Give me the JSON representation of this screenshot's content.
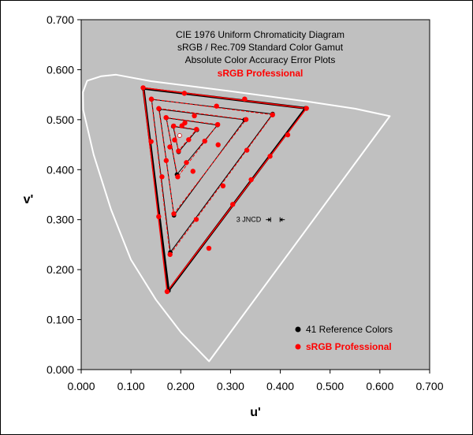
{
  "chart_data": {
    "type": "scatter",
    "title_lines": [
      "CIE 1976 Uniform Chromaticity Diagram",
      "sRGB / Rec.709 Standard Color Gamut",
      "Absolute Color Accuracy Error Plots"
    ],
    "subtitle": "sRGB Professional",
    "xlabel": "u'",
    "ylabel": "v'",
    "xlim": [
      0,
      0.7
    ],
    "ylim": [
      0,
      0.7
    ],
    "x_ticks": [
      "0.000",
      "0.100",
      "0.200",
      "0.300",
      "0.400",
      "0.500",
      "0.600",
      "0.700"
    ],
    "y_ticks": [
      "0.000",
      "0.100",
      "0.200",
      "0.300",
      "0.400",
      "0.500",
      "0.600",
      "0.700"
    ],
    "grid": false,
    "plot_background": "#c0c0c0",
    "legend_position": "bottom-right",
    "annotation": "3 JNCD",
    "annotation_point": [
      0.39,
      0.3
    ],
    "white_point": [
      0.1978,
      0.4683
    ],
    "spectral_locus": [
      [
        0.2568,
        0.0165
      ],
      [
        0.2,
        0.075
      ],
      [
        0.15,
        0.14
      ],
      [
        0.1,
        0.22
      ],
      [
        0.06,
        0.32
      ],
      [
        0.025,
        0.43
      ],
      [
        0.004,
        0.52
      ],
      [
        0.0035,
        0.555
      ],
      [
        0.012,
        0.578
      ],
      [
        0.04,
        0.587
      ],
      [
        0.07,
        0.59
      ],
      [
        0.14,
        0.577
      ],
      [
        0.3,
        0.557
      ],
      [
        0.45,
        0.537
      ],
      [
        0.55,
        0.522
      ],
      [
        0.62,
        0.507
      ]
    ],
    "series": [
      {
        "name": "41 Reference Colors",
        "color": "#000000",
        "triangles": [
          [
            [
              0.4507,
              0.5229
            ],
            [
              0.125,
              0.5625
            ],
            [
              0.1754,
              0.1579
            ]
          ],
          [
            [
              0.3846,
              0.5115
            ],
            [
              0.1415,
              0.5406
            ],
            [
              0.1791,
              0.2347
            ]
          ],
          [
            [
              0.3283,
              0.4998
            ],
            [
              0.1567,
              0.5211
            ],
            [
              0.1864,
              0.3085
            ]
          ],
          [
            [
              0.2739,
              0.4892
            ],
            [
              0.1711,
              0.5035
            ],
            [
              0.1923,
              0.3903
            ]
          ],
          [
            [
              0.2326,
              0.4795
            ],
            [
              0.1848,
              0.4865
            ],
            [
              0.1957,
              0.4354
            ]
          ]
        ],
        "points": [
          [
            0.4507,
            0.5229
          ],
          [
            0.3284,
            0.5413
          ],
          [
            0.2073,
            0.5528
          ],
          [
            0.125,
            0.5625
          ],
          [
            0.1404,
            0.4562
          ],
          [
            0.1557,
            0.3061
          ],
          [
            0.1754,
            0.1579
          ],
          [
            0.2565,
            0.2427
          ],
          [
            0.3044,
            0.3305
          ],
          [
            0.3415,
            0.3799
          ],
          [
            0.3794,
            0.4268
          ],
          [
            0.4149,
            0.4697
          ],
          [
            0.3846,
            0.5115
          ],
          [
            0.2719,
            0.5271
          ],
          [
            0.1415,
            0.5406
          ],
          [
            0.1622,
            0.3857
          ],
          [
            0.1791,
            0.2347
          ],
          [
            0.2312,
            0.3005
          ],
          [
            0.2849,
            0.3675
          ],
          [
            0.3328,
            0.4389
          ],
          [
            0.3283,
            0.4998
          ],
          [
            0.2274,
            0.5077
          ],
          [
            0.1567,
            0.5211
          ],
          [
            0.1708,
            0.4182
          ],
          [
            0.1864,
            0.3085
          ],
          [
            0.2245,
            0.3967
          ],
          [
            0.2751,
            0.4497
          ],
          [
            0.2739,
            0.4892
          ],
          [
            0.2083,
            0.4934
          ],
          [
            0.1711,
            0.5035
          ],
          [
            0.1781,
            0.4454
          ],
          [
            0.1923,
            0.3903
          ],
          [
            0.2114,
            0.4142
          ],
          [
            0.2482,
            0.4571
          ],
          [
            0.2326,
            0.4795
          ],
          [
            0.2023,
            0.4878
          ],
          [
            0.1848,
            0.4865
          ],
          [
            0.1957,
            0.4354
          ],
          [
            0.2159,
            0.4599
          ],
          [
            0.1978,
            0.4683
          ],
          [
            0.1876,
            0.4594
          ]
        ]
      },
      {
        "name": "sRGB Professional",
        "color": "#ff0000",
        "triangles": [
          [
            [
              0.4525,
              0.5226
            ],
            [
              0.1244,
              0.5638
            ],
            [
              0.1726,
              0.1561
            ]
          ],
          [
            [
              0.3844,
              0.5097
            ],
            [
              0.1409,
              0.5412
            ],
            [
              0.1785,
              0.2303
            ]
          ],
          [
            [
              0.3311,
              0.5003
            ],
            [
              0.1558,
              0.5223
            ],
            [
              0.1861,
              0.3117
            ]
          ],
          [
            [
              0.2742,
              0.4902
            ],
            [
              0.1705,
              0.5042
            ],
            [
              0.1939,
              0.3857
            ]
          ],
          [
            [
              0.2316,
              0.4806
            ],
            [
              0.1856,
              0.4873
            ],
            [
              0.1955,
              0.4373
            ]
          ]
        ],
        "points": [
          [
            0.4525,
            0.5226
          ],
          [
            0.3284,
            0.5413
          ],
          [
            0.2073,
            0.5528
          ],
          [
            0.1244,
            0.5638
          ],
          [
            0.1404,
            0.4562
          ],
          [
            0.1557,
            0.3061
          ],
          [
            0.1726,
            0.1561
          ],
          [
            0.2565,
            0.2427
          ],
          [
            0.3044,
            0.3305
          ],
          [
            0.3415,
            0.3799
          ],
          [
            0.3794,
            0.4268
          ],
          [
            0.4149,
            0.4697
          ],
          [
            0.3844,
            0.5097
          ],
          [
            0.2719,
            0.5271
          ],
          [
            0.1409,
            0.5412
          ],
          [
            0.1622,
            0.3857
          ],
          [
            0.1785,
            0.2303
          ],
          [
            0.2312,
            0.3005
          ],
          [
            0.2849,
            0.3675
          ],
          [
            0.3328,
            0.4389
          ],
          [
            0.3311,
            0.5003
          ],
          [
            0.2274,
            0.5077
          ],
          [
            0.1558,
            0.5223
          ],
          [
            0.1708,
            0.4182
          ],
          [
            0.1861,
            0.3117
          ],
          [
            0.2245,
            0.3967
          ],
          [
            0.2751,
            0.4497
          ],
          [
            0.2742,
            0.4902
          ],
          [
            0.2083,
            0.4934
          ],
          [
            0.1705,
            0.5042
          ],
          [
            0.1781,
            0.4454
          ],
          [
            0.1939,
            0.3857
          ],
          [
            0.2114,
            0.4142
          ],
          [
            0.2482,
            0.4571
          ],
          [
            0.2316,
            0.4806
          ],
          [
            0.2023,
            0.4878
          ],
          [
            0.1856,
            0.4873
          ],
          [
            0.1955,
            0.4373
          ],
          [
            0.2159,
            0.4599
          ],
          [
            0.1876,
            0.4594
          ]
        ]
      }
    ]
  }
}
